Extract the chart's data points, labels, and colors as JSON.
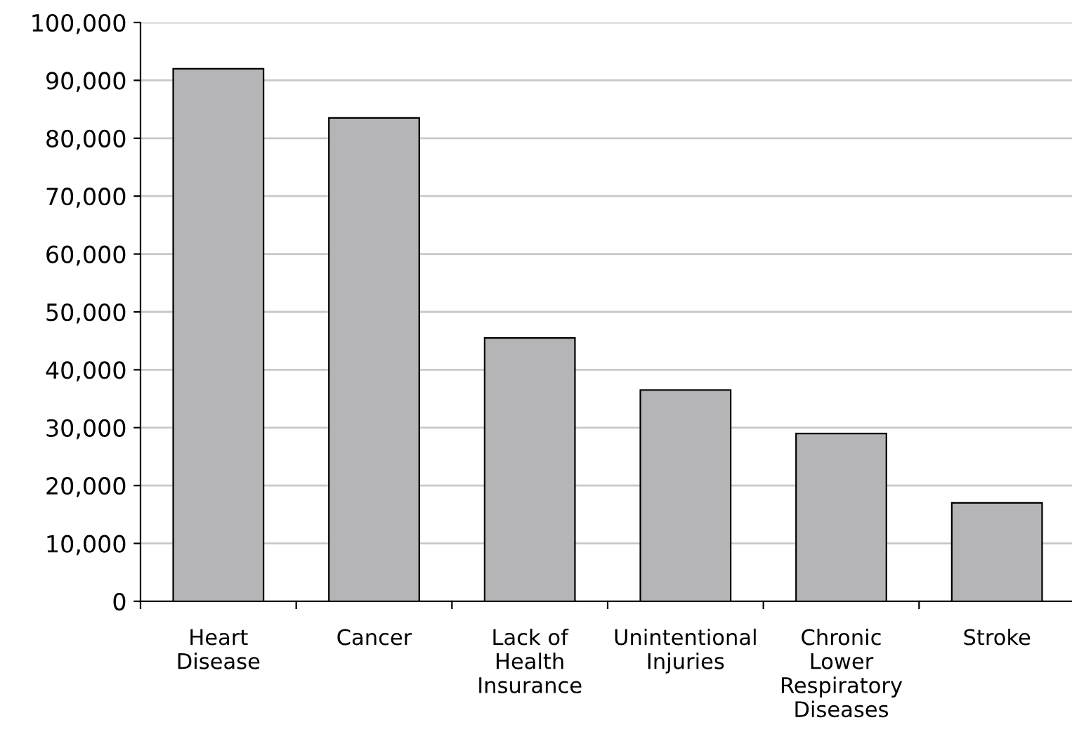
{
  "chart_data": {
    "type": "bar",
    "categories": [
      "Heart\nDisease",
      "Cancer",
      "Lack of\nHealth\nInsurance",
      "Unintentional\nInjuries",
      "Chronic\nLower\nRespiratory\nDiseases",
      "Stroke"
    ],
    "values": [
      92000,
      83500,
      45500,
      36500,
      29000,
      17000
    ],
    "color": "#b5b5b8",
    "ylim": [
      0,
      100000
    ],
    "yticks": [
      {
        "value": 0,
        "label": "0"
      },
      {
        "value": 10000,
        "label": "10,000"
      },
      {
        "value": 20000,
        "label": "20,000"
      },
      {
        "value": 30000,
        "label": "30,000"
      },
      {
        "value": 40000,
        "label": "40,000"
      },
      {
        "value": 50000,
        "label": "50,000"
      },
      {
        "value": 60000,
        "label": "60,000"
      },
      {
        "value": 70000,
        "label": "70,000"
      },
      {
        "value": 80000,
        "label": "80,000"
      },
      {
        "value": 90000,
        "label": "90,000"
      },
      {
        "value": 100000,
        "label": "100,000"
      }
    ],
    "grid": "y"
  }
}
